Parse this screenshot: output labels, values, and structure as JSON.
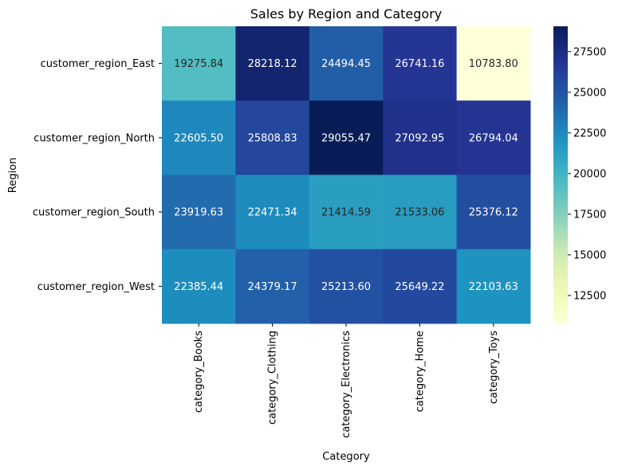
{
  "chart_data": {
    "type": "heatmap",
    "title": "Sales by Region and Category",
    "xlabel": "Category",
    "ylabel": "Region",
    "x_categories": [
      "category_Books",
      "category_Clothing",
      "category_Electronics",
      "category_Home",
      "category_Toys"
    ],
    "y_categories": [
      "customer_region_East",
      "customer_region_North",
      "customer_region_South",
      "customer_region_West"
    ],
    "values": [
      [
        19275.84,
        28218.12,
        24494.45,
        26741.16,
        10783.8
      ],
      [
        22605.5,
        25808.83,
        29055.47,
        27092.95,
        26794.04
      ],
      [
        23919.63,
        22471.34,
        21414.59,
        21533.06,
        25376.12
      ],
      [
        22385.44,
        24379.17,
        25213.6,
        25649.22,
        22103.63
      ]
    ],
    "colorbar": {
      "colormap": "YlGnBu",
      "range": [
        10783.8,
        29055.47
      ],
      "ticks": [
        12500,
        15000,
        17500,
        20000,
        22500,
        25000,
        27500
      ],
      "tick_labels": [
        "12500",
        "15000",
        "17500",
        "20000",
        "22500",
        "25000",
        "27500"
      ]
    },
    "value_format": "fixed-2",
    "grid": false,
    "legend": "colorbar-right"
  }
}
